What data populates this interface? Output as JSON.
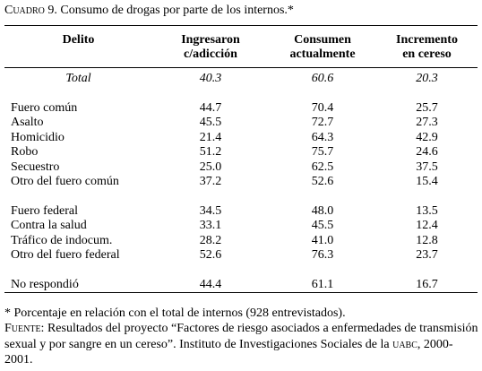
{
  "title": {
    "label": "Cuadro 9.",
    "text": "Consumo de drogas por parte de los internos.*"
  },
  "table": {
    "headers": [
      [
        "Delito"
      ],
      [
        "Ingresaron",
        "c/adicción"
      ],
      [
        "Consumen",
        "actualmente"
      ],
      [
        "Incremento",
        "en cereso"
      ]
    ],
    "groups": [
      [
        [
          "Total",
          "40.3",
          "60.6",
          "20.3"
        ]
      ],
      [
        [
          "Fuero común",
          "44.7",
          "70.4",
          "25.7"
        ],
        [
          "Asalto",
          "45.5",
          "72.7",
          "27.3"
        ],
        [
          "Homicidio",
          "21.4",
          "64.3",
          "42.9"
        ],
        [
          "Robo",
          "51.2",
          "75.7",
          "24.6"
        ],
        [
          "Secuestro",
          "25.0",
          "62.5",
          "37.5"
        ],
        [
          "Otro del fuero común",
          "37.2",
          "52.6",
          "15.4"
        ]
      ],
      [
        [
          "Fuero federal",
          "34.5",
          "48.0",
          "13.5"
        ],
        [
          "Contra la salud",
          "33.1",
          "45.5",
          "12.4"
        ],
        [
          "Tráfico de indocum.",
          "28.2",
          "41.0",
          "12.8"
        ],
        [
          "Otro del fuero federal",
          "52.6",
          "76.3",
          "23.7"
        ]
      ],
      [
        [
          "No respondió",
          "44.4",
          "61.1",
          "16.7"
        ]
      ]
    ]
  },
  "notes": {
    "footnote": "* Porcentaje en relación con el total de internos (928 entrevistados).",
    "source_label": "Fuente:",
    "source_text": "Resultados del proyecto “Factores de riesgo asociados a enfermedades de transmisión sexual y por sangre en un cereso”. Instituto de Investigaciones Sociales de la",
    "source_org": "uabc",
    "source_end": ", 2000-2001."
  }
}
